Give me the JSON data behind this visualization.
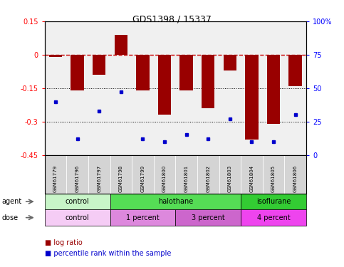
{
  "title": "GDS1398 / 15337",
  "samples": [
    "GSM61779",
    "GSM61796",
    "GSM61797",
    "GSM61798",
    "GSM61799",
    "GSM61800",
    "GSM61801",
    "GSM61802",
    "GSM61803",
    "GSM61804",
    "GSM61805",
    "GSM61806"
  ],
  "log_ratios": [
    -0.01,
    -0.16,
    -0.09,
    0.09,
    -0.16,
    -0.27,
    -0.16,
    -0.24,
    -0.07,
    -0.38,
    -0.31,
    -0.14
  ],
  "percentile_ranks": [
    40,
    12,
    33,
    47,
    12,
    10,
    15,
    12,
    27,
    10,
    10,
    30
  ],
  "bar_color": "#990000",
  "dot_color": "#0000cc",
  "dashed_line_color": "#cc0000",
  "ylim_left": [
    -0.45,
    0.15
  ],
  "ylim_right": [
    0,
    100
  ],
  "yticks_left": [
    0.15,
    0,
    -0.15,
    -0.3,
    -0.45
  ],
  "yticks_right": [
    100,
    75,
    50,
    25,
    0
  ],
  "agent_groups": [
    {
      "label": "control",
      "start": 0,
      "end": 3,
      "color": "#c8f5c8"
    },
    {
      "label": "halothane",
      "start": 3,
      "end": 9,
      "color": "#55dd55"
    },
    {
      "label": "isoflurane",
      "start": 9,
      "end": 12,
      "color": "#33cc33"
    }
  ],
  "dose_groups": [
    {
      "label": "control",
      "start": 0,
      "end": 3,
      "color": "#f5ccf5"
    },
    {
      "label": "1 percent",
      "start": 3,
      "end": 6,
      "color": "#dd88dd"
    },
    {
      "label": "3 percent",
      "start": 6,
      "end": 9,
      "color": "#cc66cc"
    },
    {
      "label": "4 percent",
      "start": 9,
      "end": 12,
      "color": "#ee44ee"
    }
  ],
  "background_color": "#ffffff"
}
